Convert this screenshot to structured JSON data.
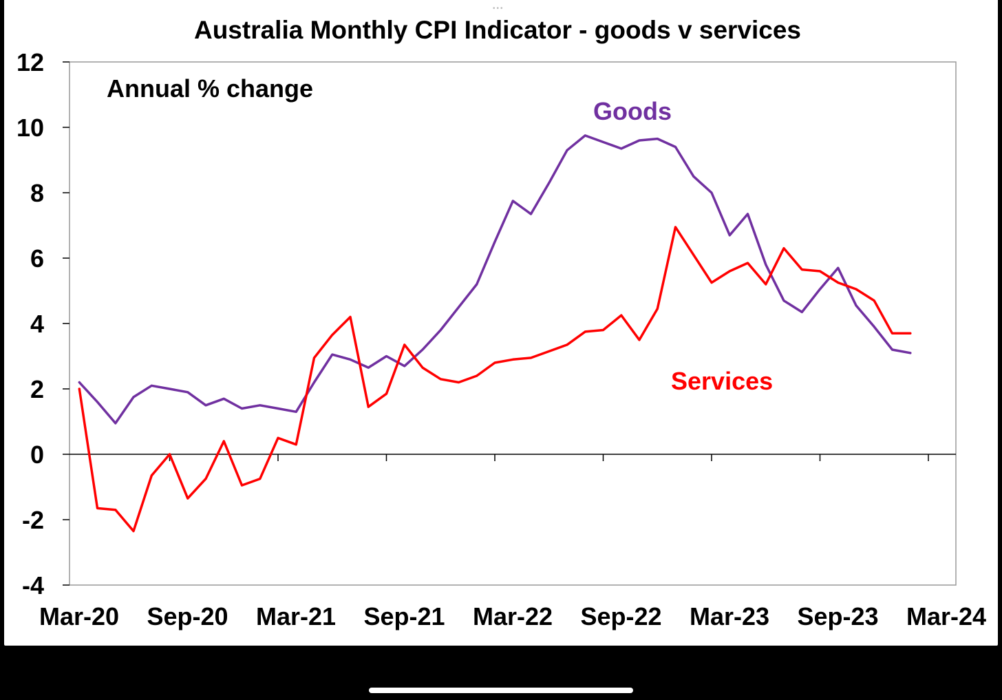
{
  "chart_data": {
    "type": "line",
    "title": "Australia Monthly CPI Indicator - goods v services",
    "subtitle": "Annual % change",
    "x_tick_labels": [
      "Mar-20",
      "Sep-20",
      "Mar-21",
      "Sep-21",
      "Mar-22",
      "Sep-22",
      "Mar-23",
      "Sep-23",
      "Mar-24"
    ],
    "y_tick_labels": [
      "12",
      "10",
      "8",
      "6",
      "4",
      "2",
      "0",
      "-2",
      "-4"
    ],
    "ylim": [
      -4,
      12
    ],
    "x_start": "Mar-20",
    "x_end": "Mar-24",
    "grid": false,
    "legend": "inline labels",
    "x": [
      "Apr-20",
      "May-20",
      "Jun-20",
      "Jul-20",
      "Aug-20",
      "Sep-20",
      "Oct-20",
      "Nov-20",
      "Dec-20",
      "Jan-21",
      "Feb-21",
      "Mar-21",
      "Apr-21",
      "May-21",
      "Jun-21",
      "Jul-21",
      "Aug-21",
      "Sep-21",
      "Oct-21",
      "Nov-21",
      "Dec-21",
      "Jan-22",
      "Feb-22",
      "Mar-22",
      "Apr-22",
      "May-22",
      "Jun-22",
      "Jul-22",
      "Aug-22",
      "Sep-22",
      "Oct-22",
      "Nov-22",
      "Dec-22",
      "Jan-23",
      "Feb-23",
      "Mar-23",
      "Apr-23",
      "May-23",
      "Jun-23",
      "Jul-23",
      "Aug-23",
      "Sep-23",
      "Oct-23",
      "Nov-23",
      "Dec-23",
      "Jan-24",
      "Feb-24"
    ],
    "series": [
      {
        "name": "Goods",
        "color": "#7030A0",
        "values": [
          2.2,
          1.6,
          0.95,
          1.75,
          2.1,
          2.0,
          1.9,
          1.5,
          1.7,
          1.4,
          1.5,
          1.4,
          1.3,
          2.2,
          3.05,
          2.9,
          2.65,
          3.0,
          2.7,
          3.2,
          3.8,
          4.5,
          5.2,
          6.5,
          7.75,
          7.35,
          8.3,
          9.3,
          9.75,
          9.55,
          9.35,
          9.6,
          9.65,
          9.4,
          8.5,
          8.0,
          6.7,
          7.35,
          5.8,
          4.7,
          4.35,
          5.05,
          5.7,
          4.55,
          3.9,
          3.2,
          3.1
        ]
      },
      {
        "name": "Services",
        "color": "#FF0000",
        "values": [
          2.0,
          -1.65,
          -1.7,
          -2.35,
          -0.65,
          0.0,
          -1.35,
          -0.75,
          0.4,
          -0.95,
          -0.75,
          0.5,
          0.3,
          2.95,
          3.65,
          4.2,
          1.45,
          1.85,
          3.35,
          2.65,
          2.3,
          2.2,
          2.4,
          2.8,
          2.9,
          2.95,
          3.15,
          3.35,
          3.75,
          3.8,
          4.25,
          3.5,
          4.45,
          6.95,
          6.1,
          5.25,
          5.6,
          5.85,
          5.2,
          6.3,
          5.65,
          5.6,
          5.25,
          5.05,
          4.7,
          3.7,
          3.7
        ]
      }
    ],
    "series_labels": [
      "Goods",
      "Services"
    ]
  }
}
